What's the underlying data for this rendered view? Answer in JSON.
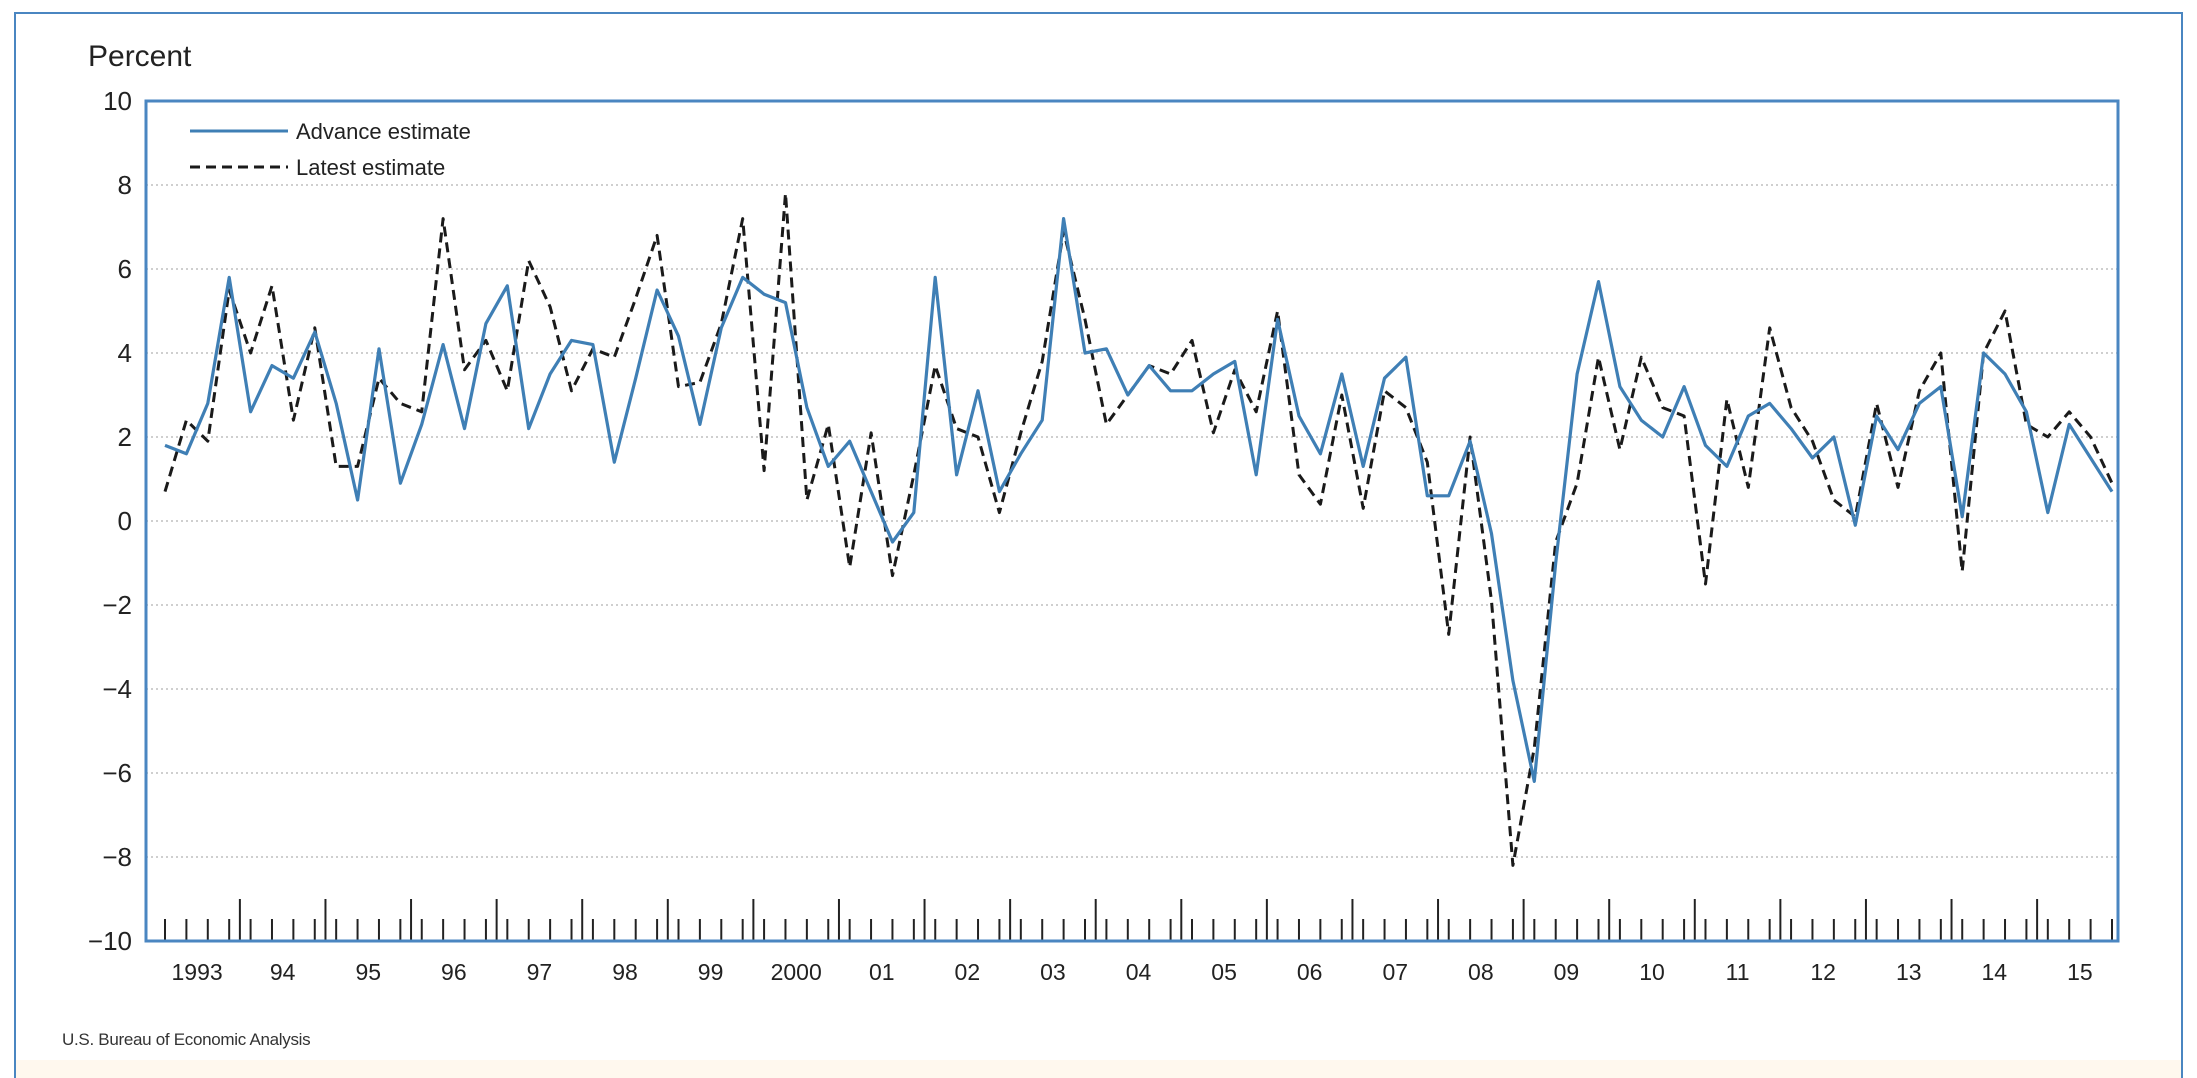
{
  "footer": "U.S. Bureau of Economic Analysis",
  "colors": {
    "frame": "#4a86c1",
    "advance": "#3f7fb5",
    "latest": "#1a1a1a",
    "grid": "#bfbfbf"
  },
  "chart_data": {
    "type": "line",
    "ylabel": "Percent",
    "ylim": [
      -10,
      10
    ],
    "yticks": [
      "10",
      "8",
      "6",
      "4",
      "2",
      "0",
      "-2",
      "-4",
      "-6",
      "-8",
      "-10"
    ],
    "ytick_values": [
      10,
      8,
      6,
      4,
      2,
      0,
      -2,
      -4,
      -6,
      -8,
      -10
    ],
    "x_tick_labels": [
      "1993",
      "94",
      "95",
      "96",
      "97",
      "98",
      "99",
      "2000",
      "01",
      "02",
      "03",
      "04",
      "05",
      "06",
      "07",
      "08",
      "09",
      "10",
      "11",
      "12",
      "13",
      "14",
      "15"
    ],
    "x_start": "1993 Q1",
    "x_frequency": "quarterly",
    "grid": true,
    "legend_position": "top-left",
    "series": [
      {
        "name": "Advance estimate",
        "style": "solid",
        "values": [
          1.8,
          1.6,
          2.8,
          5.8,
          2.6,
          3.7,
          3.4,
          4.5,
          2.8,
          0.5,
          4.1,
          0.9,
          2.3,
          4.2,
          2.2,
          4.7,
          5.6,
          2.2,
          3.5,
          4.3,
          4.2,
          1.4,
          3.4,
          5.5,
          4.4,
          2.3,
          4.6,
          5.8,
          5.4,
          5.2,
          2.7,
          1.3,
          1.9,
          0.7,
          -0.5,
          0.2,
          5.8,
          1.1,
          3.1,
          0.7,
          1.6,
          2.4,
          7.2,
          4.0,
          4.1,
          3.0,
          3.7,
          3.1,
          3.1,
          3.5,
          3.8,
          1.1,
          4.8,
          2.5,
          1.6,
          3.5,
          1.3,
          3.4,
          3.9,
          0.6,
          0.6,
          1.9,
          -0.3,
          -3.8,
          -6.2,
          -1.0,
          3.5,
          5.7,
          3.2,
          2.4,
          2.0,
          3.2,
          1.8,
          1.3,
          2.5,
          2.8,
          2.2,
          1.5,
          2.0,
          -0.1,
          2.5,
          1.7,
          2.8,
          3.2,
          0.1,
          4.0,
          3.5,
          2.6,
          0.2,
          2.3,
          1.5,
          0.7
        ]
      },
      {
        "name": "Latest estimate",
        "style": "dashed",
        "values": [
          0.7,
          2.4,
          1.9,
          5.5,
          4.0,
          5.6,
          2.4,
          4.6,
          1.3,
          1.3,
          3.4,
          2.8,
          2.6,
          7.2,
          3.6,
          4.3,
          3.1,
          6.2,
          5.1,
          3.1,
          4.1,
          3.9,
          5.3,
          6.8,
          3.2,
          3.3,
          4.7,
          7.2,
          1.2,
          7.8,
          0.5,
          2.3,
          -1.1,
          2.1,
          -1.3,
          1.1,
          3.7,
          2.2,
          2.0,
          0.2,
          2.1,
          3.8,
          6.9,
          4.8,
          2.3,
          3.0,
          3.7,
          3.5,
          4.3,
          2.1,
          3.6,
          2.6,
          5.0,
          1.1,
          0.4,
          3.0,
          0.3,
          3.1,
          2.7,
          1.4,
          -2.7,
          2.0,
          -1.9,
          -8.2,
          -5.4,
          -0.5,
          0.9,
          3.9,
          1.7,
          3.9,
          2.7,
          2.5,
          -1.5,
          2.9,
          0.8,
          4.6,
          2.7,
          1.9,
          0.5,
          0.1,
          2.8,
          0.8,
          3.1,
          4.0,
          -1.2,
          4.0,
          5.0,
          2.3,
          2.0,
          2.6,
          2.0,
          0.9
        ]
      }
    ]
  }
}
